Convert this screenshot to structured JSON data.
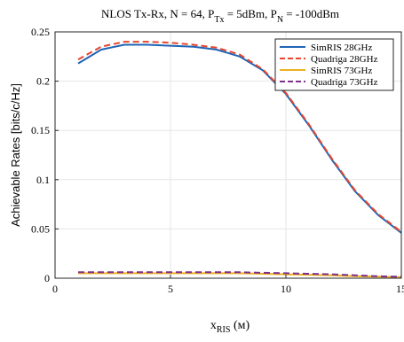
{
  "chart_data": {
    "type": "line",
    "title": {
      "prefix": "NLOS Tx-Rx, N = 64, P",
      "sub1": "Tx",
      "mid": " = 5dBm, P",
      "sub2": "N",
      "suffix": " = -100dBm"
    },
    "xlabel": {
      "main": "x",
      "sub": "RIS",
      "unit": " (м)"
    },
    "ylabel": "Achievable Rates [bits/c/Hz]",
    "xlim": [
      0,
      15
    ],
    "ylim": [
      0,
      0.25
    ],
    "xticks": [
      0,
      5,
      10,
      15
    ],
    "yticks": [
      0,
      0.05,
      0.1,
      0.15,
      0.2,
      0.25
    ],
    "ytick_labels": [
      "0",
      "0.05",
      "0.1",
      "0.15",
      "0.2",
      "0.25"
    ],
    "grid": true,
    "legend_position": "top-right",
    "x": [
      1,
      2,
      3,
      4,
      5,
      6,
      7,
      8,
      9,
      10,
      11,
      12,
      13,
      14,
      15
    ],
    "series": [
      {
        "name": "SimRIS 28GHz",
        "color": "#1f64b5",
        "dash": "solid",
        "values": [
          0.218,
          0.232,
          0.237,
          0.237,
          0.236,
          0.235,
          0.232,
          0.225,
          0.211,
          0.187,
          0.155,
          0.12,
          0.088,
          0.064,
          0.046
        ]
      },
      {
        "name": "Quadriga 28GHz",
        "color": "#e8452c",
        "dash": "dashed",
        "values": [
          0.222,
          0.235,
          0.24,
          0.24,
          0.239,
          0.237,
          0.234,
          0.227,
          0.212,
          0.188,
          0.156,
          0.121,
          0.089,
          0.065,
          0.047
        ]
      },
      {
        "name": "SimRIS 73GHz",
        "color": "#edb120",
        "dash": "solid",
        "values": [
          0.005,
          0.005,
          0.005,
          0.005,
          0.005,
          0.005,
          0.005,
          0.005,
          0.0045,
          0.004,
          0.0035,
          0.003,
          0.002,
          0.0015,
          0.001
        ]
      },
      {
        "name": "Quadriga 73GHz",
        "color": "#7e2f8e",
        "dash": "dashed",
        "values": [
          0.006,
          0.006,
          0.006,
          0.006,
          0.006,
          0.006,
          0.006,
          0.006,
          0.0055,
          0.005,
          0.0045,
          0.004,
          0.003,
          0.002,
          0.0015
        ]
      }
    ]
  }
}
